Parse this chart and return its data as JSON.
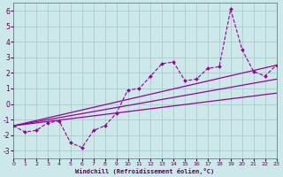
{
  "xlabel": "Windchill (Refroidissement éolien,°C)",
  "bg_color": "#cce8e8",
  "grid_color": "#aacccc",
  "line_color": "#990099",
  "xlim": [
    0,
    23
  ],
  "ylim": [
    -3.5,
    6.5
  ],
  "xticks": [
    0,
    1,
    2,
    3,
    4,
    5,
    6,
    7,
    8,
    9,
    10,
    11,
    12,
    13,
    14,
    15,
    16,
    17,
    18,
    19,
    20,
    21,
    22,
    23
  ],
  "yticks": [
    -3,
    -2,
    -1,
    0,
    1,
    2,
    3,
    4,
    5,
    6
  ],
  "data_x": [
    0,
    1,
    2,
    3,
    4,
    5,
    6,
    7,
    8,
    9,
    10,
    11,
    12,
    13,
    14,
    15,
    16,
    17,
    18,
    19,
    20,
    21,
    22,
    23
  ],
  "data_y": [
    -1.4,
    -1.8,
    -1.7,
    -1.2,
    -1.1,
    -2.5,
    -2.8,
    -1.7,
    -1.4,
    -0.6,
    0.9,
    1.0,
    1.8,
    2.6,
    2.7,
    1.5,
    1.6,
    2.3,
    2.4,
    6.1,
    3.5,
    2.1,
    1.8,
    2.5
  ],
  "line1_x": [
    0,
    23
  ],
  "line1_y": [
    -1.4,
    2.5
  ],
  "line2_x": [
    0,
    23
  ],
  "line2_y": [
    -1.4,
    1.6
  ],
  "line3_x": [
    0,
    23
  ],
  "line3_y": [
    -1.4,
    0.7
  ]
}
